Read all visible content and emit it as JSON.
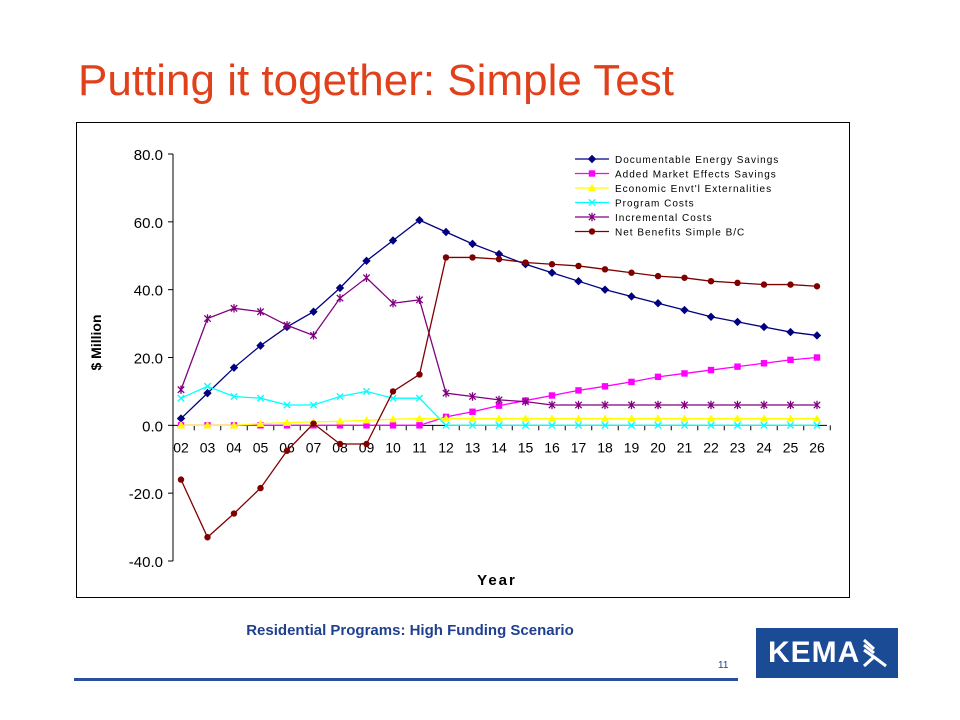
{
  "slide": {
    "title": "Putting it together:  Simple Test",
    "subtitle": "Residential Programs:  High Funding Scenario",
    "page_number": "11",
    "logo_text": "KEMA"
  },
  "colors": {
    "title": "#e0401a",
    "subtitle": "#1f3f8f",
    "rule": "#2b4f9e",
    "logo_bg": "#1c4b96"
  },
  "chart_data": {
    "type": "line",
    "title": "",
    "xlabel": "Year",
    "ylabel": "$ Million",
    "ylim": [
      -40,
      80
    ],
    "yticks": [
      "80.0",
      "60.0",
      "40.0",
      "20.0",
      "0.0",
      "-20.0",
      "-40.0"
    ],
    "legend_position": "top-right",
    "grid": false,
    "categories": [
      "02",
      "03",
      "04",
      "05",
      "06",
      "07",
      "08",
      "09",
      "10",
      "11",
      "12",
      "13",
      "14",
      "15",
      "16",
      "17",
      "18",
      "19",
      "20",
      "21",
      "22",
      "23",
      "24",
      "25",
      "26"
    ],
    "series": [
      {
        "name": "Documentable Energy Savings",
        "color": "#000080",
        "marker": "diamond",
        "values": [
          2.0,
          9.5,
          17.0,
          23.5,
          29.0,
          33.5,
          40.5,
          48.5,
          54.5,
          60.5,
          57.0,
          53.5,
          50.5,
          47.5,
          45.0,
          42.5,
          40.0,
          38.0,
          36.0,
          34.0,
          32.0,
          30.5,
          29.0,
          27.5,
          26.5
        ]
      },
      {
        "name": "Added Market Effects Savings",
        "color": "#ff00ff",
        "marker": "square",
        "values": [
          0.0,
          0.0,
          0.0,
          0.0,
          0.0,
          0.0,
          0.0,
          0.0,
          0.0,
          0.0,
          2.5,
          4.0,
          5.8,
          7.3,
          8.8,
          10.3,
          11.5,
          12.8,
          14.3,
          15.3,
          16.3,
          17.3,
          18.3,
          19.3,
          20.0
        ]
      },
      {
        "name": "Economic Envt'l Externalities",
        "color": "#ffff00",
        "marker": "triangle",
        "values": [
          0.0,
          0.0,
          0.0,
          0.5,
          0.8,
          1.0,
          1.2,
          1.5,
          1.8,
          2.0,
          2.0,
          2.0,
          2.0,
          2.0,
          2.0,
          2.0,
          2.0,
          2.0,
          2.0,
          2.0,
          2.0,
          2.0,
          2.0,
          2.0,
          2.0
        ]
      },
      {
        "name": "Program Costs",
        "color": "#00ffff",
        "marker": "x",
        "values": [
          8.0,
          11.5,
          8.5,
          8.0,
          6.0,
          6.0,
          8.5,
          10.0,
          8.0,
          8.0,
          0.0,
          0.0,
          0.0,
          0.0,
          0.0,
          0.0,
          0.0,
          0.0,
          0.0,
          0.0,
          0.0,
          0.0,
          0.0,
          0.0,
          0.0
        ]
      },
      {
        "name": "Incremental Costs",
        "color": "#800080",
        "marker": "star",
        "values": [
          10.5,
          31.5,
          34.5,
          33.5,
          29.5,
          26.5,
          37.5,
          43.5,
          36.0,
          37.0,
          9.5,
          8.5,
          7.5,
          7.0,
          6.0,
          6.0,
          6.0,
          6.0,
          6.0,
          6.0,
          6.0,
          6.0,
          6.0,
          6.0,
          6.0
        ]
      },
      {
        "name": "Net Benefits Simple B/C",
        "color": "#800000",
        "marker": "circle",
        "values": [
          -16.0,
          -33.0,
          -26.0,
          -18.5,
          -7.5,
          0.5,
          -5.5,
          -5.5,
          10.0,
          15.0,
          49.5,
          49.5,
          49.0,
          48.0,
          47.5,
          47.0,
          46.0,
          45.0,
          44.0,
          43.5,
          42.5,
          42.0,
          41.5,
          41.5,
          41.0
        ]
      }
    ]
  }
}
